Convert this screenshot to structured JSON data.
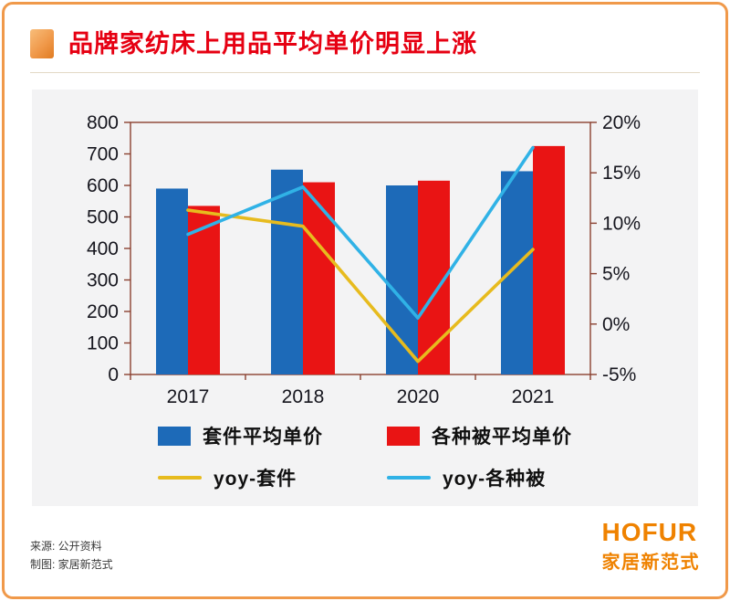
{
  "page": {
    "title": "品牌家纺床上用品平均单价明显上涨"
  },
  "chart_data": {
    "type": "bar",
    "subtype": "grouped-bars-with-yoy-lines",
    "categories": [
      "2017",
      "2018",
      "2020",
      "2021"
    ],
    "bar_series": [
      {
        "name": "套件平均单价",
        "color": "#1d6ab8",
        "values": [
          590,
          650,
          600,
          645
        ]
      },
      {
        "name": "各种被平均单价",
        "color": "#e91414",
        "values": [
          535,
          610,
          615,
          725
        ]
      }
    ],
    "line_series": [
      {
        "name": "yoy-套件",
        "color": "#e7bb1e",
        "values": [
          11.3,
          9.7,
          -3.7,
          7.4
        ]
      },
      {
        "name": "yoy-各种被",
        "color": "#30b2e6",
        "values": [
          8.9,
          13.6,
          0.6,
          17.5
        ]
      }
    ],
    "left_axis": {
      "min": 0,
      "max": 800,
      "step": 100
    },
    "right_axis": {
      "min": -5,
      "max": 20,
      "step": 5,
      "suffix": "%"
    },
    "grid": "off",
    "legend_position": "bottom",
    "frame_color": "#8a4030"
  },
  "footer": {
    "source_line": "来源: 公开资料",
    "credit_line": "制图: 家居新范式",
    "logo_text": "HOFUR",
    "logo_subtext": "家居新范式"
  }
}
